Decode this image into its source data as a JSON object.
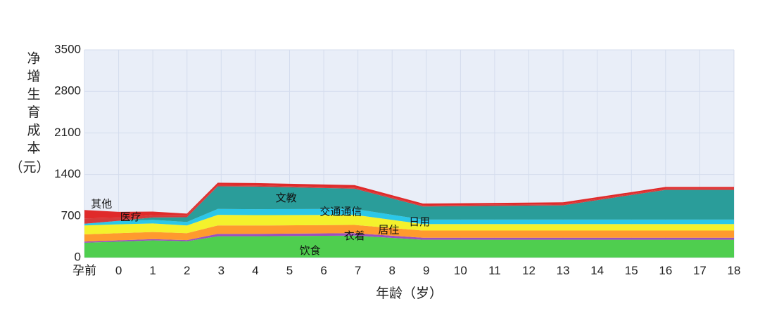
{
  "chart_data": {
    "type": "area",
    "title": "",
    "xlabel": "年龄（岁）",
    "ylabel": "净增生育成本（元）",
    "categories": [
      "孕前",
      "0",
      "1",
      "2",
      "3",
      "4",
      "5",
      "6",
      "7",
      "8",
      "9",
      "10",
      "11",
      "12",
      "13",
      "14",
      "15",
      "16",
      "17",
      "18"
    ],
    "x": [
      -1,
      0,
      1,
      2,
      2.9,
      4,
      6.9,
      8.9,
      13,
      16,
      18
    ],
    "ylim": [
      0,
      3500
    ],
    "yticks": [
      0,
      700,
      1400,
      2100,
      2800,
      3500
    ],
    "grid": true,
    "background": "#e9eef8",
    "stacked": true,
    "series": [
      {
        "name": "饮食",
        "color": "#4fce4f",
        "values": [
          250,
          270,
          290,
          275,
          360,
          360,
          370,
          300,
          300,
          300,
          300
        ]
      },
      {
        "name": "衣着",
        "color": "#9b4fbf",
        "values": [
          20,
          20,
          20,
          20,
          40,
          40,
          40,
          35,
          35,
          35,
          35
        ]
      },
      {
        "name": "居住",
        "color": "#ff9a2e",
        "values": [
          120,
          120,
          120,
          115,
          140,
          140,
          140,
          120,
          120,
          120,
          120
        ]
      },
      {
        "name": "日用",
        "color": "#f4f12c",
        "values": [
          150,
          150,
          145,
          130,
          180,
          175,
          170,
          110,
          110,
          110,
          110
        ]
      },
      {
        "name": "交通通信",
        "color": "#2bc7e8",
        "values": [
          30,
          60,
          60,
          60,
          100,
          100,
          100,
          75,
          75,
          75,
          75
        ]
      },
      {
        "name": "文教",
        "color": "#2a9d9a",
        "values": [
          0,
          0,
          40,
          80,
          380,
          380,
          340,
          220,
          240,
          500,
          500
        ]
      },
      {
        "name": "医疗",
        "color": "#d63a3a",
        "values": [
          90,
          50,
          40,
          40,
          20,
          20,
          20,
          20,
          20,
          20,
          20
        ]
      },
      {
        "name": "其他",
        "color": "#e02a2a",
        "values": [
          140,
          100,
          60,
          20,
          40,
          40,
          40,
          30,
          30,
          30,
          30
        ]
      }
    ],
    "labels": [
      {
        "text": "其他",
        "x": -0.5,
        "y": 900
      },
      {
        "text": "医疗",
        "x": 0.35,
        "y": 680
      },
      {
        "text": "文教",
        "x": 4.9,
        "y": 1000
      },
      {
        "text": "交通通信",
        "x": 6.5,
        "y": 770
      },
      {
        "text": "日用",
        "x": 8.8,
        "y": 600
      },
      {
        "text": "居住",
        "x": 7.9,
        "y": 460
      },
      {
        "text": "衣着",
        "x": 6.9,
        "y": 360
      },
      {
        "text": "饮食",
        "x": 5.6,
        "y": 110
      }
    ]
  }
}
